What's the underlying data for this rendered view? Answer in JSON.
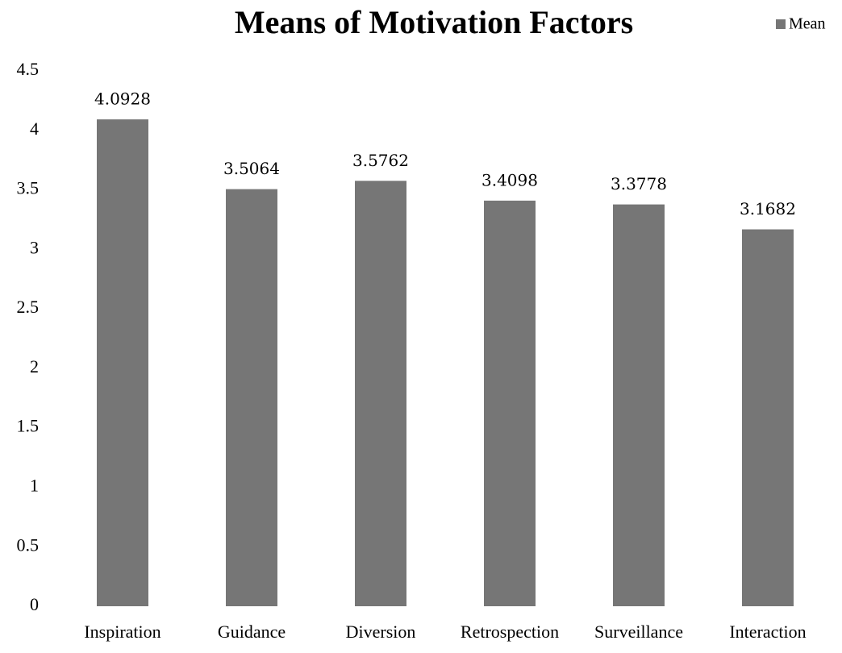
{
  "chart_data": {
    "type": "bar",
    "title": "Means of Motivation Factors",
    "categories": [
      "Inspiration",
      "Guidance",
      "Diversion",
      "Retrospection",
      "Surveillance",
      "Interaction"
    ],
    "series": [
      {
        "name": "Mean",
        "color": "#767676",
        "values": [
          4.0928,
          3.5064,
          3.5762,
          3.4098,
          3.3778,
          3.1682
        ]
      }
    ],
    "ylim": [
      0,
      4.5
    ],
    "yticks": [
      0,
      0.5,
      1,
      1.5,
      2,
      2.5,
      3,
      3.5,
      4,
      4.5
    ],
    "grid": false,
    "legend": "top-right"
  }
}
